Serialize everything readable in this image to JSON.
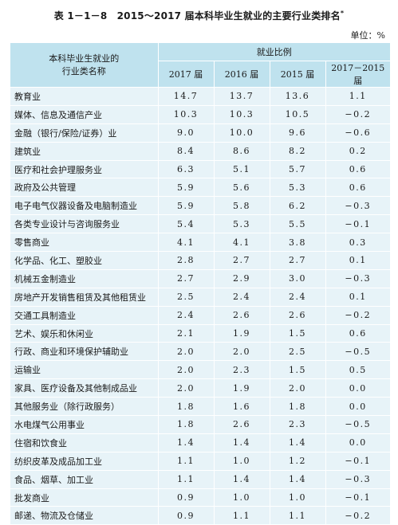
{
  "title": "表 1－1－8　2015～2017 届本科毕业生就业的主要行业类排名",
  "title_mark": "*",
  "unit": "单位：%",
  "header": {
    "row_head_line1": "本科毕业生就业的",
    "row_head_line2": "行业类名称",
    "group": "就业比例",
    "years": [
      "2017 届",
      "2016 届",
      "2015 届",
      "2017－2015 届"
    ]
  },
  "rows": [
    {
      "name": "教育业",
      "v": [
        "14.7",
        "13.7",
        "13.6",
        "1.1"
      ]
    },
    {
      "name": "媒体、信息及通信产业",
      "v": [
        "10.3",
        "10.3",
        "10.5",
        "−0.2"
      ]
    },
    {
      "name": "金融（银行/保险/证券）业",
      "v": [
        "9.0",
        "10.0",
        "9.6",
        "−0.6"
      ]
    },
    {
      "name": "建筑业",
      "v": [
        "8.4",
        "8.6",
        "8.2",
        "0.2"
      ]
    },
    {
      "name": "医疗和社会护理服务业",
      "v": [
        "6.3",
        "5.1",
        "5.7",
        "0.6"
      ]
    },
    {
      "name": "政府及公共管理",
      "v": [
        "5.9",
        "5.6",
        "5.3",
        "0.6"
      ]
    },
    {
      "name": "电子电气仪器设备及电脑制造业",
      "v": [
        "5.9",
        "5.8",
        "6.2",
        "−0.3"
      ]
    },
    {
      "name": "各类专业设计与咨询服务业",
      "v": [
        "5.4",
        "5.3",
        "5.5",
        "−0.1"
      ]
    },
    {
      "name": "零售商业",
      "v": [
        "4.1",
        "4.1",
        "3.8",
        "0.3"
      ]
    },
    {
      "name": "化学品、化工、塑胶业",
      "v": [
        "2.8",
        "2.7",
        "2.7",
        "0.1"
      ]
    },
    {
      "name": "机械五金制造业",
      "v": [
        "2.7",
        "2.9",
        "3.0",
        "−0.3"
      ]
    },
    {
      "name": "房地产开发销售租赁及其他租赁业",
      "v": [
        "2.5",
        "2.4",
        "2.4",
        "0.1"
      ]
    },
    {
      "name": "交通工具制造业",
      "v": [
        "2.4",
        "2.6",
        "2.6",
        "−0.2"
      ]
    },
    {
      "name": "艺术、娱乐和休闲业",
      "v": [
        "2.1",
        "1.9",
        "1.5",
        "0.6"
      ]
    },
    {
      "name": "行政、商业和环境保护辅助业",
      "v": [
        "2.0",
        "2.0",
        "2.5",
        "−0.5"
      ]
    },
    {
      "name": "运输业",
      "v": [
        "2.0",
        "2.3",
        "1.5",
        "0.5"
      ]
    },
    {
      "name": "家具、医疗设备及其他制成品业",
      "v": [
        "2.0",
        "1.9",
        "2.0",
        "0.0"
      ]
    },
    {
      "name": "其他服务业（除行政服务）",
      "v": [
        "1.8",
        "1.6",
        "1.8",
        "0.0"
      ]
    },
    {
      "name": "水电煤气公用事业",
      "v": [
        "1.8",
        "2.6",
        "2.3",
        "−0.5"
      ]
    },
    {
      "name": "住宿和饮食业",
      "v": [
        "1.4",
        "1.4",
        "1.4",
        "0.0"
      ]
    },
    {
      "name": "纺织皮革及成品加工业",
      "v": [
        "1.1",
        "1.0",
        "1.2",
        "−0.1"
      ]
    },
    {
      "name": "食品、烟草、加工业",
      "v": [
        "1.1",
        "1.4",
        "1.4",
        "−0.3"
      ]
    },
    {
      "name": "批发商业",
      "v": [
        "0.9",
        "1.0",
        "1.0",
        "−0.1"
      ]
    },
    {
      "name": "邮递、物流及仓储业",
      "v": [
        "0.9",
        "1.1",
        "1.1",
        "−0.2"
      ]
    }
  ]
}
